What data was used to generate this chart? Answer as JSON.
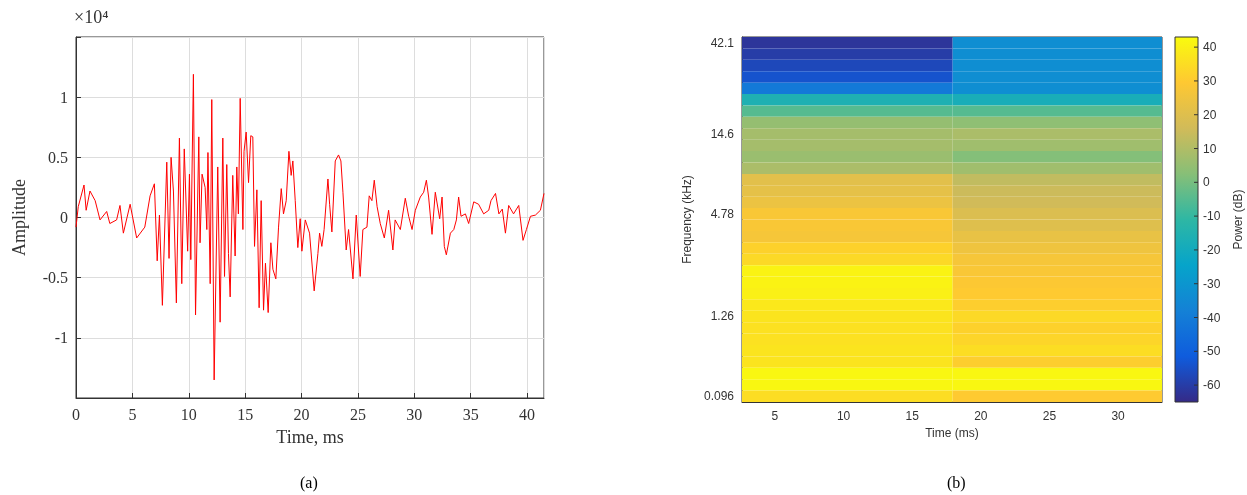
{
  "chart_data": [
    {
      "type": "line",
      "xlabel": "Time, ms",
      "ylabel": "Amplitude",
      "annotations": [
        "×10⁴",
        "(a)"
      ],
      "xlim": [
        0,
        41.5
      ],
      "xticks": [
        0,
        5,
        10,
        15,
        20,
        25,
        30,
        35,
        40
      ],
      "ylim": [
        -1.5,
        1.5
      ],
      "yticks": [
        -1,
        -0.5,
        0,
        0.5,
        1
      ],
      "grid": true,
      "series": [
        {
          "color": "#ff0000",
          "x": [
            0,
            0.2,
            0.71,
            0.9,
            1.24,
            1.7,
            2.13,
            2.72,
            3.0,
            3.6,
            3.9,
            4.2,
            4.8,
            5.38,
            6.1,
            6.57,
            6.95,
            7.2,
            7.4,
            7.66,
            8.05,
            8.25,
            8.43,
            8.64,
            8.9,
            9.17,
            9.38,
            9.6,
            9.9,
            10.06,
            10.18,
            10.41,
            10.6,
            10.89,
            11.0,
            11.18,
            11.45,
            11.6,
            11.7,
            11.9,
            12.04,
            12.25,
            12.57,
            12.78,
            13.02,
            13.17,
            13.37,
            13.52,
            13.67,
            13.9,
            14.11,
            14.26,
            14.4,
            14.56,
            14.8,
            14.9,
            15.09,
            15.3,
            15.5,
            15.68,
            15.83,
            16.04,
            16.24,
            16.42,
            16.63,
            16.8,
            17.04,
            17.28,
            17.46,
            17.72,
            17.96,
            18.2,
            18.4,
            18.64,
            18.88,
            19.08,
            19.23,
            19.44,
            19.67,
            19.88,
            20.03,
            20.33,
            20.71,
            21.12,
            21.45,
            21.6,
            21.8,
            22.0,
            22.34,
            22.49,
            22.69,
            22.99,
            23.28,
            23.49,
            23.67,
            23.96,
            24.17,
            24.56,
            24.85,
            25.2,
            25.44,
            25.8,
            26.0,
            26.24,
            26.45,
            26.7,
            26.98,
            27.34,
            27.72,
            28.1,
            28.3,
            28.76,
            29.2,
            29.5,
            29.8,
            30.09,
            30.53,
            30.83,
            31.07,
            31.27,
            31.57,
            31.86,
            32.25,
            32.46,
            32.66,
            32.84,
            33.2,
            33.5,
            33.73,
            33.93,
            34.14,
            34.53,
            34.82,
            35.27,
            35.7,
            36.15,
            36.6,
            36.8,
            37.2,
            37.5,
            37.8,
            38.08,
            38.37,
            38.8,
            39.26,
            39.64,
            39.94,
            40.3,
            40.74,
            41.18,
            41.5
          ],
          "values": [
            -0.08,
            0.09,
            0.27,
            0.06,
            0.22,
            0.14,
            -0.02,
            0.05,
            -0.05,
            -0.02,
            0.1,
            -0.13,
            0.11,
            -0.17,
            -0.08,
            0.18,
            0.28,
            -0.36,
            0.02,
            -0.73,
            0.46,
            -0.34,
            0.5,
            0.22,
            -0.71,
            0.66,
            -0.55,
            0.57,
            -0.28,
            0.36,
            -0.35,
            1.19,
            -0.81,
            0.67,
            -0.21,
            0.36,
            0.25,
            -0.1,
            0.54,
            -0.55,
            0.98,
            -1.35,
            0.42,
            -0.87,
            0.66,
            -0.49,
            0.44,
            -0.3,
            -0.66,
            0.35,
            -0.32,
            0.42,
            0.03,
            0.99,
            -0.1,
            0.55,
            0.71,
            0.29,
            0.68,
            0.67,
            -0.24,
            0.23,
            -0.75,
            0.14,
            -0.77,
            -0.38,
            -0.79,
            -0.21,
            -0.43,
            -0.51,
            -0.08,
            0.24,
            0.03,
            0.14,
            0.55,
            0.35,
            0.47,
            0.14,
            -0.25,
            -0.01,
            -0.28,
            -0.02,
            -0.13,
            -0.61,
            -0.3,
            -0.13,
            -0.24,
            -0.1,
            0.32,
            0.11,
            -0.12,
            0.47,
            0.52,
            0.47,
            0.21,
            -0.27,
            -0.1,
            -0.51,
            0.02,
            -0.49,
            -0.1,
            -0.08,
            0.18,
            0.14,
            0.31,
            0.09,
            -0.05,
            -0.17,
            0.06,
            -0.27,
            -0.02,
            -0.1,
            0.16,
            0.01,
            -0.1,
            0.06,
            0.17,
            0.21,
            0.31,
            0.17,
            -0.14,
            0.21,
            -0.01,
            0.17,
            -0.24,
            -0.31,
            -0.13,
            -0.1,
            -0.02,
            0.17,
            0.01,
            0.03,
            -0.05,
            0.13,
            0.11,
            0.03,
            0.06,
            0.14,
            0.2,
            0.03,
            0.07,
            -0.13,
            0.1,
            0.03,
            0.1,
            -0.19,
            -0.1,
            0.01,
            0.02,
            0.06,
            0.2
          ]
        }
      ]
    },
    {
      "type": "heatmap",
      "xlabel": "Time (ms)",
      "ylabel": "Frequency (kHz)",
      "clabel": "Power (dB)",
      "annotations": [
        "(b)"
      ],
      "x": [
        10.3,
        25.6
      ],
      "xlim": [
        2.6,
        33.2
      ],
      "xticks": [
        5,
        10,
        15,
        20,
        25,
        30
      ],
      "y_categories": [
        "42.1",
        null,
        null,
        null,
        null,
        null,
        null,
        null,
        "14.6",
        null,
        null,
        null,
        null,
        null,
        null,
        "4.78",
        null,
        null,
        null,
        null,
        null,
        null,
        null,
        null,
        "1.26",
        null,
        null,
        null,
        null,
        null,
        null,
        "0.096"
      ],
      "cells": [
        [
          -62,
          -33
        ],
        [
          -60,
          -33
        ],
        [
          -57,
          -33
        ],
        [
          -54,
          -33
        ],
        [
          -41,
          -33
        ],
        [
          -16,
          -18
        ],
        [
          -5,
          -5
        ],
        [
          5,
          4
        ],
        [
          8,
          9
        ],
        [
          8,
          7
        ],
        [
          6,
          2
        ],
        [
          9,
          7
        ],
        [
          21,
          13
        ],
        [
          22,
          15
        ],
        [
          24,
          16
        ],
        [
          28,
          19
        ],
        [
          28,
          20
        ],
        [
          27,
          23
        ],
        [
          32,
          25
        ],
        [
          34,
          27
        ],
        [
          41,
          28
        ],
        [
          41,
          29
        ],
        [
          40,
          30
        ],
        [
          38,
          31
        ],
        [
          37,
          34
        ],
        [
          36,
          32
        ],
        [
          36,
          33
        ],
        [
          37,
          35
        ],
        [
          37,
          31
        ],
        [
          42,
          42
        ],
        [
          42,
          42
        ],
        [
          35,
          30
        ]
      ],
      "clim": [
        -65,
        43
      ],
      "cticks": [
        -60,
        -50,
        -40,
        -30,
        -20,
        -10,
        0,
        10,
        20,
        30,
        40
      ]
    }
  ]
}
